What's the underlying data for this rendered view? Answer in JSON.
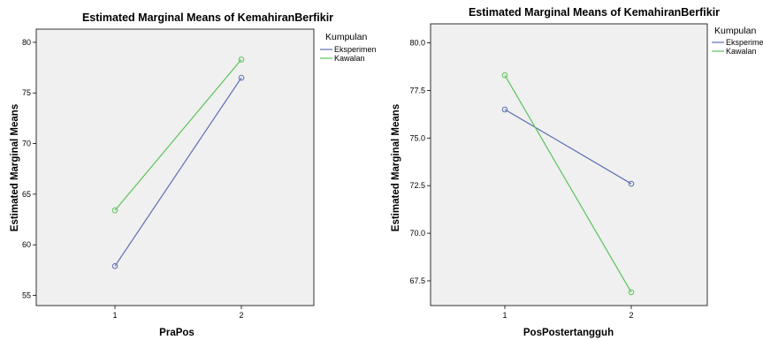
{
  "chart_data": [
    {
      "type": "line",
      "title": "Estimated Marginal Means of KemahiranBerfikir",
      "xlabel": "PraPos",
      "ylabel": "Estimated Marginal Means",
      "categories": [
        "1",
        "2"
      ],
      "y_ticks": [
        "55",
        "60",
        "65",
        "70",
        "75",
        "80"
      ],
      "ylim": [
        54,
        81.3
      ],
      "legend_title": "Kumpulan",
      "legend_position": "top-right, outside plot",
      "grid": false,
      "series": [
        {
          "name": "Eksperimen",
          "color": "#5d6fb2",
          "values": [
            57.9,
            76.5
          ]
        },
        {
          "name": "Kawalan",
          "color": "#5ac35a",
          "values": [
            63.4,
            78.3
          ]
        }
      ]
    },
    {
      "type": "line",
      "title": "Estimated Marginal Means of KemahiranBerfikir",
      "xlabel": "PosPostertangguh",
      "ylabel": "Estimated Marginal Means",
      "categories": [
        "1",
        "2"
      ],
      "y_ticks": [
        "67.5",
        "70.0",
        "72.5",
        "75.0",
        "77.5",
        "80.0"
      ],
      "ylim": [
        66.2,
        81
      ],
      "legend_title": "Kumpulan",
      "legend_position": "top-right, outside plot",
      "grid": false,
      "series": [
        {
          "name": "Eksperimen",
          "color": "#5d6fb2",
          "values": [
            76.5,
            72.6
          ]
        },
        {
          "name": "Kawalan",
          "color": "#5ac35a",
          "values": [
            78.3,
            66.9
          ]
        }
      ]
    }
  ]
}
